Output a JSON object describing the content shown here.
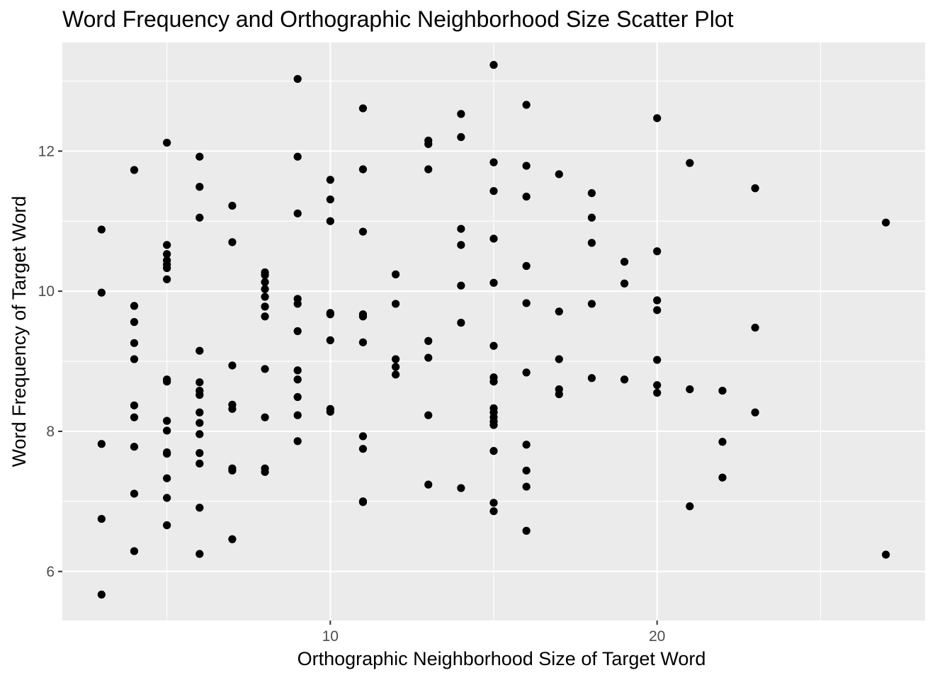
{
  "chart_data": {
    "type": "scatter",
    "title": "Word Frequency and Orthographic Neighborhood Size Scatter Plot",
    "xlabel": "Orthographic Neighborhood Size of Target Word",
    "ylabel": "Word Frequency of Target Word",
    "xlim": [
      1.8,
      28.2
    ],
    "ylim": [
      5.3,
      13.55
    ],
    "x_ticks": [
      10,
      20
    ],
    "y_ticks": [
      6,
      8,
      10,
      12
    ],
    "grid": true,
    "legend": "none",
    "colors": {
      "panel_background": "#ebebeb",
      "grid": "#ffffff",
      "point": "#000000"
    },
    "points": [
      {
        "x": 3,
        "y": 10.88
      },
      {
        "x": 3,
        "y": 9.98
      },
      {
        "x": 3,
        "y": 7.82
      },
      {
        "x": 3,
        "y": 6.75
      },
      {
        "x": 3,
        "y": 5.67
      },
      {
        "x": 4,
        "y": 11.73
      },
      {
        "x": 4,
        "y": 9.79
      },
      {
        "x": 4,
        "y": 9.56
      },
      {
        "x": 4,
        "y": 9.26
      },
      {
        "x": 4,
        "y": 9.03
      },
      {
        "x": 4,
        "y": 8.37
      },
      {
        "x": 4,
        "y": 8.2
      },
      {
        "x": 4,
        "y": 7.78
      },
      {
        "x": 4,
        "y": 7.11
      },
      {
        "x": 4,
        "y": 6.29
      },
      {
        "x": 5,
        "y": 12.12
      },
      {
        "x": 5,
        "y": 10.66
      },
      {
        "x": 5,
        "y": 10.53
      },
      {
        "x": 5,
        "y": 10.44
      },
      {
        "x": 5,
        "y": 10.38
      },
      {
        "x": 5,
        "y": 10.33
      },
      {
        "x": 5,
        "y": 10.17
      },
      {
        "x": 5,
        "y": 8.74
      },
      {
        "x": 5,
        "y": 8.71
      },
      {
        "x": 5,
        "y": 8.15
      },
      {
        "x": 5,
        "y": 8.01
      },
      {
        "x": 5,
        "y": 7.7
      },
      {
        "x": 5,
        "y": 7.68
      },
      {
        "x": 5,
        "y": 7.33
      },
      {
        "x": 5,
        "y": 7.05
      },
      {
        "x": 5,
        "y": 6.66
      },
      {
        "x": 6,
        "y": 11.92
      },
      {
        "x": 6,
        "y": 11.49
      },
      {
        "x": 6,
        "y": 11.05
      },
      {
        "x": 6,
        "y": 9.15
      },
      {
        "x": 6,
        "y": 8.7
      },
      {
        "x": 6,
        "y": 8.58
      },
      {
        "x": 6,
        "y": 8.52
      },
      {
        "x": 6,
        "y": 8.27
      },
      {
        "x": 6,
        "y": 8.12
      },
      {
        "x": 6,
        "y": 7.96
      },
      {
        "x": 6,
        "y": 7.69
      },
      {
        "x": 6,
        "y": 7.54
      },
      {
        "x": 6,
        "y": 6.91
      },
      {
        "x": 6,
        "y": 6.25
      },
      {
        "x": 7,
        "y": 11.22
      },
      {
        "x": 7,
        "y": 10.7
      },
      {
        "x": 7,
        "y": 8.94
      },
      {
        "x": 7,
        "y": 8.38
      },
      {
        "x": 7,
        "y": 8.32
      },
      {
        "x": 7,
        "y": 7.47
      },
      {
        "x": 7,
        "y": 7.44
      },
      {
        "x": 7,
        "y": 6.46
      },
      {
        "x": 8,
        "y": 10.27
      },
      {
        "x": 8,
        "y": 10.23
      },
      {
        "x": 8,
        "y": 10.13
      },
      {
        "x": 8,
        "y": 10.03
      },
      {
        "x": 8,
        "y": 9.92
      },
      {
        "x": 8,
        "y": 9.78
      },
      {
        "x": 8,
        "y": 9.64
      },
      {
        "x": 8,
        "y": 8.89
      },
      {
        "x": 8,
        "y": 8.2
      },
      {
        "x": 8,
        "y": 7.47
      },
      {
        "x": 8,
        "y": 7.42
      },
      {
        "x": 9,
        "y": 13.03
      },
      {
        "x": 9,
        "y": 11.92
      },
      {
        "x": 9,
        "y": 11.11
      },
      {
        "x": 9,
        "y": 9.89
      },
      {
        "x": 9,
        "y": 9.82
      },
      {
        "x": 9,
        "y": 9.43
      },
      {
        "x": 9,
        "y": 8.87
      },
      {
        "x": 9,
        "y": 8.74
      },
      {
        "x": 9,
        "y": 8.49
      },
      {
        "x": 9,
        "y": 8.23
      },
      {
        "x": 9,
        "y": 7.86
      },
      {
        "x": 10,
        "y": 11.59
      },
      {
        "x": 10,
        "y": 11.31
      },
      {
        "x": 10,
        "y": 11.0
      },
      {
        "x": 10,
        "y": 9.69
      },
      {
        "x": 10,
        "y": 9.67
      },
      {
        "x": 10,
        "y": 9.3
      },
      {
        "x": 10,
        "y": 8.32
      },
      {
        "x": 10,
        "y": 8.28
      },
      {
        "x": 11,
        "y": 12.61
      },
      {
        "x": 11,
        "y": 11.74
      },
      {
        "x": 11,
        "y": 10.85
      },
      {
        "x": 11,
        "y": 9.67
      },
      {
        "x": 11,
        "y": 9.64
      },
      {
        "x": 11,
        "y": 9.27
      },
      {
        "x": 11,
        "y": 7.93
      },
      {
        "x": 11,
        "y": 7.75
      },
      {
        "x": 11,
        "y": 7.0
      },
      {
        "x": 11,
        "y": 6.99
      },
      {
        "x": 12,
        "y": 10.24
      },
      {
        "x": 12,
        "y": 9.82
      },
      {
        "x": 12,
        "y": 9.03
      },
      {
        "x": 12,
        "y": 8.92
      },
      {
        "x": 12,
        "y": 8.81
      },
      {
        "x": 13,
        "y": 12.15
      },
      {
        "x": 13,
        "y": 12.1
      },
      {
        "x": 13,
        "y": 11.74
      },
      {
        "x": 13,
        "y": 9.29
      },
      {
        "x": 13,
        "y": 9.05
      },
      {
        "x": 13,
        "y": 8.23
      },
      {
        "x": 13,
        "y": 7.24
      },
      {
        "x": 14,
        "y": 12.53
      },
      {
        "x": 14,
        "y": 12.2
      },
      {
        "x": 14,
        "y": 10.89
      },
      {
        "x": 14,
        "y": 10.66
      },
      {
        "x": 14,
        "y": 10.08
      },
      {
        "x": 14,
        "y": 9.55
      },
      {
        "x": 14,
        "y": 7.19
      },
      {
        "x": 15,
        "y": 13.23
      },
      {
        "x": 15,
        "y": 11.84
      },
      {
        "x": 15,
        "y": 11.43
      },
      {
        "x": 15,
        "y": 10.75
      },
      {
        "x": 15,
        "y": 10.12
      },
      {
        "x": 15,
        "y": 9.22
      },
      {
        "x": 15,
        "y": 8.77
      },
      {
        "x": 15,
        "y": 8.71
      },
      {
        "x": 15,
        "y": 8.33
      },
      {
        "x": 15,
        "y": 8.27
      },
      {
        "x": 15,
        "y": 8.2
      },
      {
        "x": 15,
        "y": 8.14
      },
      {
        "x": 15,
        "y": 8.09
      },
      {
        "x": 15,
        "y": 7.72
      },
      {
        "x": 15,
        "y": 6.98
      },
      {
        "x": 15,
        "y": 6.86
      },
      {
        "x": 16,
        "y": 12.66
      },
      {
        "x": 16,
        "y": 11.79
      },
      {
        "x": 16,
        "y": 11.35
      },
      {
        "x": 16,
        "y": 10.36
      },
      {
        "x": 16,
        "y": 9.83
      },
      {
        "x": 16,
        "y": 8.84
      },
      {
        "x": 16,
        "y": 7.81
      },
      {
        "x": 16,
        "y": 7.44
      },
      {
        "x": 16,
        "y": 7.21
      },
      {
        "x": 16,
        "y": 6.58
      },
      {
        "x": 17,
        "y": 11.67
      },
      {
        "x": 17,
        "y": 9.71
      },
      {
        "x": 17,
        "y": 9.03
      },
      {
        "x": 17,
        "y": 8.6
      },
      {
        "x": 17,
        "y": 8.53
      },
      {
        "x": 18,
        "y": 11.4
      },
      {
        "x": 18,
        "y": 11.05
      },
      {
        "x": 18,
        "y": 10.69
      },
      {
        "x": 18,
        "y": 9.82
      },
      {
        "x": 18,
        "y": 8.76
      },
      {
        "x": 19,
        "y": 10.42
      },
      {
        "x": 19,
        "y": 10.11
      },
      {
        "x": 19,
        "y": 8.74
      },
      {
        "x": 20,
        "y": 12.47
      },
      {
        "x": 20,
        "y": 10.57
      },
      {
        "x": 20,
        "y": 9.87
      },
      {
        "x": 20,
        "y": 9.73
      },
      {
        "x": 20,
        "y": 9.02
      },
      {
        "x": 20,
        "y": 8.66
      },
      {
        "x": 20,
        "y": 8.55
      },
      {
        "x": 21,
        "y": 11.83
      },
      {
        "x": 21,
        "y": 8.6
      },
      {
        "x": 21,
        "y": 6.93
      },
      {
        "x": 22,
        "y": 8.58
      },
      {
        "x": 22,
        "y": 7.85
      },
      {
        "x": 22,
        "y": 7.34
      },
      {
        "x": 23,
        "y": 11.47
      },
      {
        "x": 23,
        "y": 9.48
      },
      {
        "x": 23,
        "y": 8.27
      },
      {
        "x": 27,
        "y": 10.98
      },
      {
        "x": 27,
        "y": 6.24
      }
    ]
  }
}
